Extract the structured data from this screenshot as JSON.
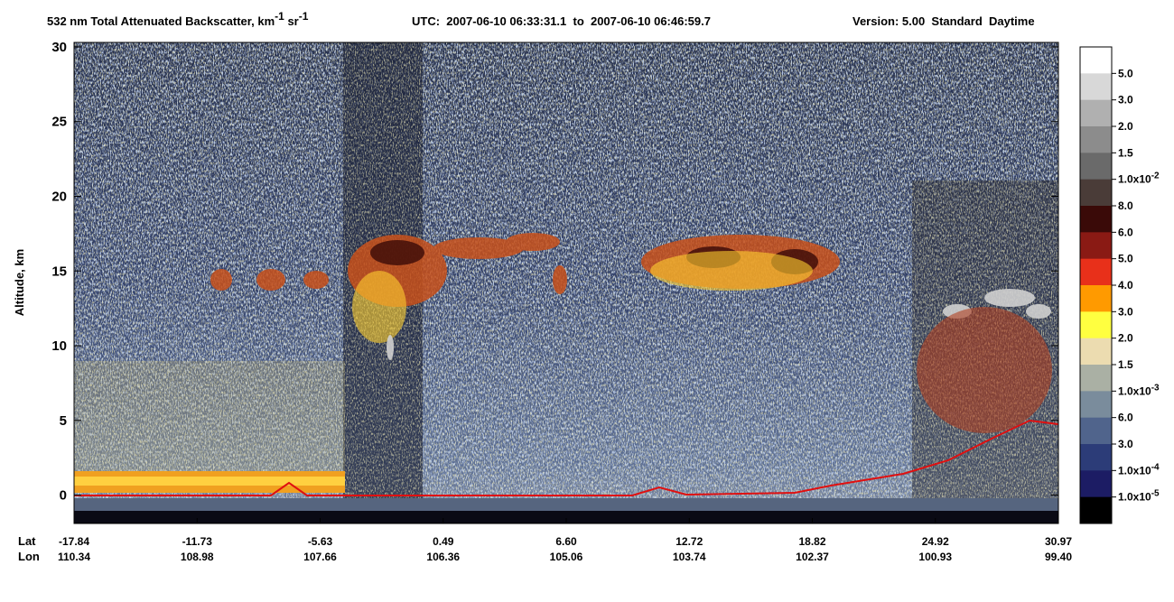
{
  "chart_data": {
    "type": "heatmap",
    "title": {
      "main": "532 nm Total Attenuated Backscatter, km",
      "exp1": "-1",
      "unit2": " sr",
      "exp2": "-1",
      "utc": "UTC:  2007-06-10 06:33:31.1  to  2007-06-10 06:46:59.7",
      "version": "Version: 5.00  Standard  Daytime"
    },
    "ylabel": "Altitude, km",
    "ylim": [
      -1.9,
      30.3
    ],
    "yticks": [
      0,
      5,
      10,
      15,
      20,
      25,
      30
    ],
    "x_rows": [
      {
        "name": "Lat",
        "categories": [
          "-17.84",
          "-11.73",
          "-5.63",
          "0.49",
          "6.60",
          "12.72",
          "18.82",
          "24.92",
          "30.97"
        ]
      },
      {
        "name": "Lon",
        "categories": [
          "110.34",
          "108.98",
          "107.66",
          "106.36",
          "105.06",
          "103.74",
          "102.37",
          "100.93",
          "99.40"
        ]
      }
    ],
    "colorbar": {
      "colors": [
        "#ffffff",
        "#d8d8d8",
        "#b0b0b0",
        "#8c8c8c",
        "#6a6a6a",
        "#4a3c38",
        "#3a0a08",
        "#8a1a14",
        "#e8301a",
        "#ff9a00",
        "#ffff40",
        "#ecdcb0",
        "#aab0a4",
        "#7a8c9c",
        "#50648c",
        "#2c3c78",
        "#1c1c64",
        "#000000"
      ],
      "labels": [
        {
          "text": "5.0"
        },
        {
          "text": "3.0"
        },
        {
          "text": "2.0"
        },
        {
          "text": "1.5"
        },
        {
          "text": "1.0x10",
          "exp": "-2"
        },
        {
          "text": "8.0"
        },
        {
          "text": "6.0"
        },
        {
          "text": "5.0"
        },
        {
          "text": "4.0"
        },
        {
          "text": "3.0"
        },
        {
          "text": "2.0"
        },
        {
          "text": "1.5"
        },
        {
          "text": "1.0x10",
          "exp": "-3"
        },
        {
          "text": "6.0"
        },
        {
          "text": "3.0"
        },
        {
          "text": "1.0x10",
          "exp": "-4"
        },
        {
          "text": "1.0x10",
          "exp": "-5"
        }
      ]
    }
  }
}
